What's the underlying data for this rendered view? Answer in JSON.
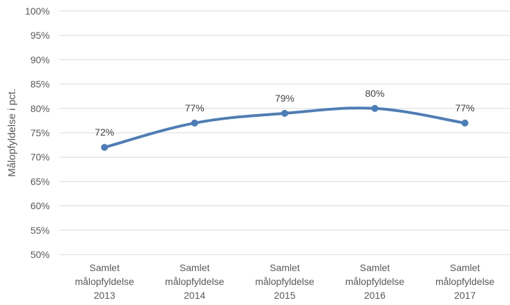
{
  "chart_data": {
    "type": "line",
    "ylabel": "Målopfyldelse i pct.",
    "categories": [
      [
        "Samlet",
        "målopfyldelse",
        "2013"
      ],
      [
        "Samlet",
        "målopfyldelse",
        "2014"
      ],
      [
        "Samlet",
        "målopfyldelse",
        "2015"
      ],
      [
        "Samlet",
        "målopfyldelse",
        "2016"
      ],
      [
        "Samlet",
        "målopfyldelse",
        "2017"
      ]
    ],
    "values": [
      72,
      77,
      79,
      80,
      77
    ],
    "data_labels": [
      "72%",
      "77%",
      "79%",
      "80%",
      "77%"
    ],
    "ylim": [
      50,
      100
    ],
    "ytick_step": 5,
    "ytick_labels": [
      "50%",
      "55%",
      "60%",
      "65%",
      "70%",
      "75%",
      "80%",
      "85%",
      "90%",
      "95%",
      "100%"
    ],
    "grid": true,
    "legend": "none",
    "line_color": "#4a7ebb",
    "grid_color": "#d9d9d9"
  }
}
